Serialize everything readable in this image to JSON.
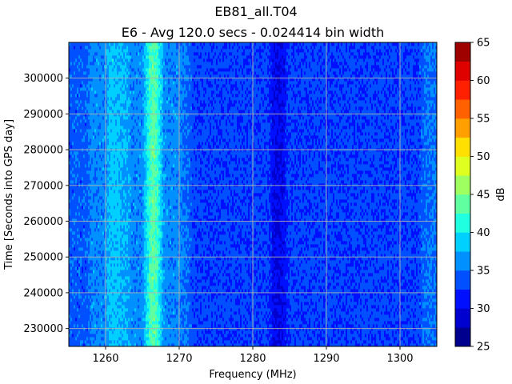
{
  "chart_data": {
    "type": "heatmap",
    "title": "EB81_all.T04",
    "subtitle": "E6 - Avg 120.0 secs - 0.024414 bin width",
    "xlabel": "Frequency (MHz)",
    "ylabel": "Time [Seconds into GPS day]",
    "xlim": [
      1255,
      1305
    ],
    "ylim": [
      225000,
      310000
    ],
    "x_ticks": [
      1260,
      1270,
      1280,
      1290,
      1300
    ],
    "x_tick_labels": [
      "1260",
      "1270",
      "1280",
      "1290",
      "1300"
    ],
    "y_ticks": [
      230000,
      240000,
      250000,
      260000,
      270000,
      280000,
      290000,
      300000
    ],
    "y_tick_labels": [
      "230000",
      "240000",
      "250000",
      "260000",
      "270000",
      "280000",
      "290000",
      "300000"
    ],
    "grid": true,
    "colorbar": {
      "label": "dB",
      "min": 25,
      "max": 65,
      "ticks": [
        25,
        30,
        35,
        40,
        45,
        50,
        55,
        60,
        65
      ],
      "tick_labels": [
        "25",
        "30",
        "35",
        "40",
        "45",
        "50",
        "55",
        "60",
        "65"
      ],
      "levels": [
        25,
        27.5,
        30,
        32.5,
        35,
        37.5,
        40,
        42.5,
        45,
        47.5,
        50,
        52.5,
        55,
        57.5,
        60,
        62.5,
        65
      ],
      "colors": [
        "#00008f",
        "#0000cf",
        "#0010ff",
        "#0050ff",
        "#0090ff",
        "#00d0ff",
        "#20ffdf",
        "#60ff9f",
        "#9fff60",
        "#dfff20",
        "#ffe000",
        "#ffa000",
        "#ff6000",
        "#ff2000",
        "#df0000",
        "#9f0000"
      ]
    },
    "spectral_profile": {
      "description_units": "approximate dB level vs frequency (MHz)",
      "frequency": [
        1255,
        1257.5,
        1258,
        1260,
        1260.5,
        1261,
        1262,
        1263,
        1263.5,
        1265,
        1266,
        1266.5,
        1267,
        1268,
        1270,
        1271,
        1272,
        1282,
        1283,
        1284,
        1285,
        1299.8,
        1300,
        1300.2,
        1302.5,
        1303.5,
        1305
      ],
      "level_db": [
        34,
        34,
        36,
        36,
        38,
        38.5,
        38,
        37,
        36,
        36,
        42,
        44,
        42,
        36,
        36,
        35,
        33,
        33,
        30,
        30,
        33,
        33,
        32.5,
        33,
        33,
        35,
        35
      ]
    }
  }
}
